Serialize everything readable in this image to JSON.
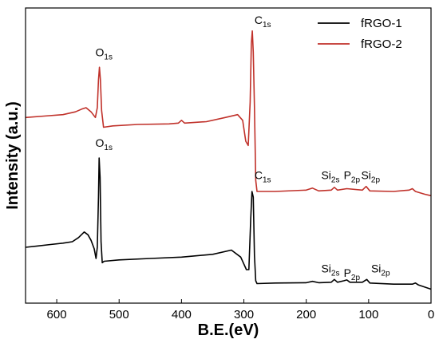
{
  "chart_data": {
    "type": "line",
    "xlabel": "B.E.(eV)",
    "ylabel": "Intensity (a.u.)",
    "xlim": [
      650,
      0
    ],
    "x_reversed": true,
    "x_ticks": [
      "600",
      "500",
      "400",
      "300",
      "200",
      "100",
      "0"
    ],
    "x_tick_values": [
      600,
      500,
      400,
      300,
      200,
      100,
      0
    ],
    "y_ticks_shown": false,
    "ylim": [
      0,
      1
    ],
    "grid": false,
    "legend_position": "top-right",
    "series": [
      {
        "name": "fRGO-1",
        "color": "#000000",
        "points": [
          [
            650,
            0.2
          ],
          [
            630,
            0.205
          ],
          [
            610,
            0.21
          ],
          [
            590,
            0.215
          ],
          [
            575,
            0.22
          ],
          [
            565,
            0.235
          ],
          [
            556,
            0.255
          ],
          [
            550,
            0.245
          ],
          [
            545,
            0.225
          ],
          [
            540,
            0.195
          ],
          [
            537,
            0.16
          ],
          [
            535,
            0.2
          ],
          [
            533,
            0.38
          ],
          [
            532,
            0.52
          ],
          [
            530.5,
            0.45
          ],
          [
            529,
            0.22
          ],
          [
            527,
            0.145
          ],
          [
            524,
            0.15
          ],
          [
            500,
            0.155
          ],
          [
            450,
            0.16
          ],
          [
            400,
            0.165
          ],
          [
            350,
            0.175
          ],
          [
            320,
            0.19
          ],
          [
            305,
            0.165
          ],
          [
            296,
            0.12
          ],
          [
            292,
            0.12
          ],
          [
            289,
            0.3
          ],
          [
            287,
            0.4
          ],
          [
            285,
            0.38
          ],
          [
            283,
            0.17
          ],
          [
            281,
            0.08
          ],
          [
            279,
            0.07
          ],
          [
            250,
            0.072
          ],
          [
            200,
            0.073
          ],
          [
            190,
            0.078
          ],
          [
            180,
            0.073
          ],
          [
            160,
            0.075
          ],
          [
            155,
            0.085
          ],
          [
            150,
            0.075
          ],
          [
            140,
            0.08
          ],
          [
            135,
            0.083
          ],
          [
            130,
            0.075
          ],
          [
            110,
            0.075
          ],
          [
            103,
            0.085
          ],
          [
            98,
            0.072
          ],
          [
            60,
            0.068
          ],
          [
            30,
            0.068
          ],
          [
            25,
            0.072
          ],
          [
            20,
            0.065
          ],
          [
            0,
            0.05
          ]
        ]
      },
      {
        "name": "fRGO-2",
        "color": "#c0312a",
        "points": [
          [
            650,
            0.665
          ],
          [
            620,
            0.67
          ],
          [
            590,
            0.675
          ],
          [
            570,
            0.685
          ],
          [
            560,
            0.695
          ],
          [
            553,
            0.7
          ],
          [
            545,
            0.685
          ],
          [
            538,
            0.665
          ],
          [
            535,
            0.7
          ],
          [
            533,
            0.8
          ],
          [
            531.5,
            0.845
          ],
          [
            530,
            0.8
          ],
          [
            528,
            0.69
          ],
          [
            525,
            0.63
          ],
          [
            510,
            0.635
          ],
          [
            470,
            0.64
          ],
          [
            420,
            0.642
          ],
          [
            405,
            0.645
          ],
          [
            400,
            0.655
          ],
          [
            395,
            0.645
          ],
          [
            360,
            0.65
          ],
          [
            330,
            0.665
          ],
          [
            310,
            0.675
          ],
          [
            302,
            0.655
          ],
          [
            297,
            0.58
          ],
          [
            293,
            0.565
          ],
          [
            290,
            0.72
          ],
          [
            288,
            0.93
          ],
          [
            286.5,
            0.975
          ],
          [
            285,
            0.9
          ],
          [
            283,
            0.7
          ],
          [
            281,
            0.44
          ],
          [
            279,
            0.4
          ],
          [
            250,
            0.4
          ],
          [
            200,
            0.405
          ],
          [
            190,
            0.412
          ],
          [
            180,
            0.402
          ],
          [
            160,
            0.405
          ],
          [
            155,
            0.415
          ],
          [
            150,
            0.405
          ],
          [
            135,
            0.41
          ],
          [
            110,
            0.405
          ],
          [
            104,
            0.418
          ],
          [
            98,
            0.402
          ],
          [
            60,
            0.4
          ],
          [
            35,
            0.405
          ],
          [
            30,
            0.41
          ],
          [
            25,
            0.4
          ],
          [
            10,
            0.39
          ],
          [
            0,
            0.385
          ]
        ]
      }
    ],
    "annotations": [
      {
        "main": "O",
        "sub": "1s",
        "x": 538,
        "y": 0.885
      },
      {
        "main": "C",
        "sub": "1s",
        "x": 283,
        "y": 1.0
      },
      {
        "main": "O",
        "sub": "1s",
        "x": 538,
        "y": 0.56
      },
      {
        "main": "C",
        "sub": "1s",
        "x": 283,
        "y": 0.445
      },
      {
        "main": "Si",
        "sub": "2s",
        "x": 176,
        "y": 0.445
      },
      {
        "main": "P",
        "sub": "2p",
        "x": 140,
        "y": 0.445
      },
      {
        "main": "Si",
        "sub": "2p",
        "x": 112,
        "y": 0.445
      },
      {
        "main": "Si",
        "sub": "2s",
        "x": 176,
        "y": 0.11
      },
      {
        "main": "P",
        "sub": "2p",
        "x": 140,
        "y": 0.095
      },
      {
        "main": "Si",
        "sub": "2p",
        "x": 96,
        "y": 0.11
      }
    ]
  }
}
